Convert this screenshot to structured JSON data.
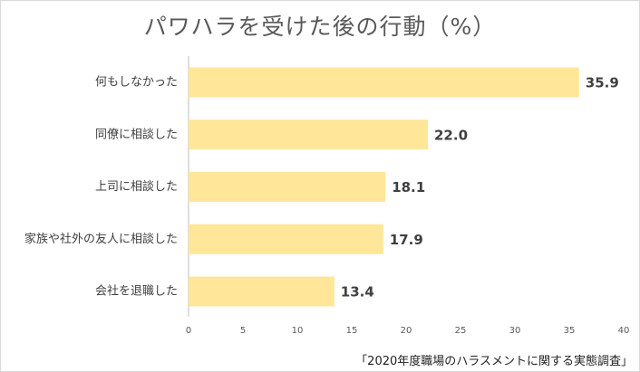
{
  "colors": {
    "bar": "#ffe699",
    "axis": "#bfbfbf",
    "text": "#404040",
    "title": "#595959"
  },
  "chart_data": {
    "type": "bar",
    "orientation": "horizontal",
    "title": "パワハラを受けた後の行動（%）",
    "categories": [
      "何もしなかった",
      "同僚に相談した",
      "上司に相談した",
      "家族や社外の友人に相談した",
      "会社を退職した"
    ],
    "values": [
      35.9,
      22.0,
      18.1,
      17.9,
      13.4
    ],
    "value_labels": [
      "35.9",
      "22.0",
      "18.1",
      "17.9",
      "13.4"
    ],
    "xlim": [
      0,
      40
    ],
    "xticks": [
      0,
      5,
      10,
      15,
      20,
      25,
      30,
      35,
      40
    ],
    "grid": false,
    "legend": "none",
    "source": "「2020年度職場のハラスメントに関する実態調査」"
  }
}
